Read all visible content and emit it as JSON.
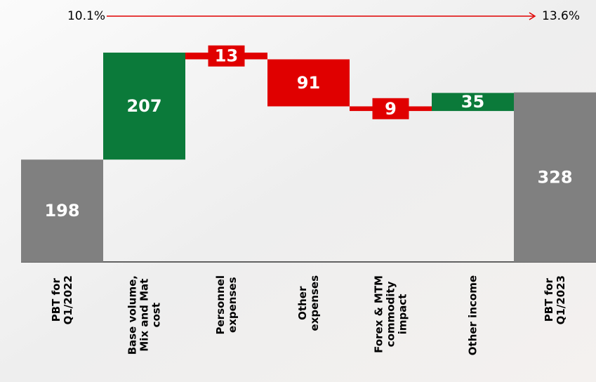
{
  "chart_data": {
    "type": "waterfall",
    "categories": [
      "PBT for\nQ1/2022",
      "Base volume,\nMix and Mat\ncost",
      "Personnel\nexpenses",
      "Other\nexpenses",
      "Forex & MTM\ncommodity\nimpact",
      "Other income",
      "PBT for\nQ1/2023"
    ],
    "values": [
      198,
      207,
      -13,
      -91,
      -9,
      35,
      328
    ],
    "value_labels": [
      "198",
      "207",
      "13",
      "91",
      "9",
      "35",
      "328"
    ],
    "measure": [
      "total",
      "relative",
      "relative",
      "relative",
      "relative",
      "relative",
      "total"
    ],
    "colors": [
      "#808080",
      "#0b7a3a",
      "#e00000",
      "#e00000",
      "#e00000",
      "#0b7a3a",
      "#808080"
    ],
    "ylim": [
      0,
      500
    ],
    "annotations": {
      "start_margin": "10.1%",
      "end_margin": "13.6%",
      "color": "#e00000"
    }
  }
}
